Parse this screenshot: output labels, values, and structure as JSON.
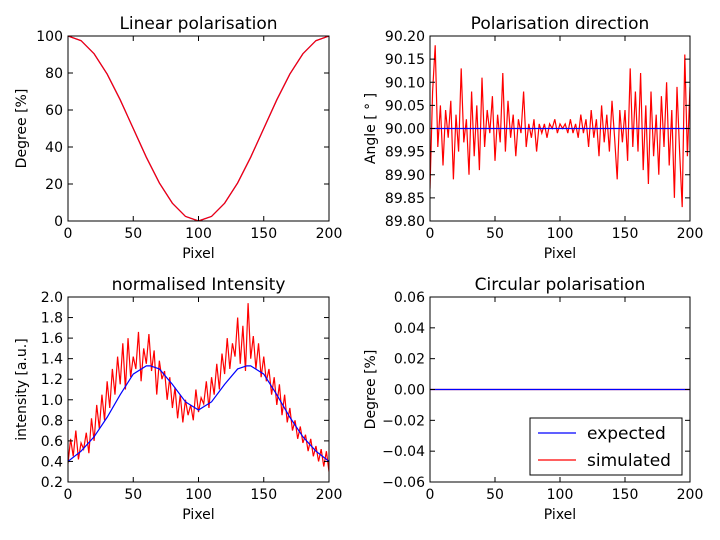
{
  "chart_data": [
    {
      "type": "line",
      "title": "Linear polarisation",
      "xlabel": "Pixel",
      "ylabel": "Degree [%]",
      "xlim": [
        0,
        200
      ],
      "ylim": [
        0,
        100
      ],
      "xticks": [
        "0",
        "50",
        "100",
        "150",
        "200"
      ],
      "yticks": [
        "0",
        "20",
        "40",
        "60",
        "80",
        "100"
      ],
      "series": [
        {
          "color": "#0000ff",
          "x": [
            0,
            10,
            20,
            30,
            40,
            50,
            60,
            70,
            80,
            90,
            100,
            110,
            120,
            130,
            140,
            150,
            160,
            170,
            180,
            190,
            200
          ],
          "y": [
            100,
            97.5,
            90.4,
            79.4,
            65.5,
            50,
            34.5,
            20.6,
            9.6,
            2.5,
            0,
            2.5,
            9.6,
            20.6,
            34.5,
            50,
            65.5,
            79.4,
            90.4,
            97.5,
            100
          ]
        },
        {
          "color": "#ff0000",
          "x": [
            0,
            10,
            20,
            30,
            40,
            50,
            60,
            70,
            80,
            90,
            100,
            110,
            120,
            130,
            140,
            150,
            160,
            170,
            180,
            190,
            200
          ],
          "y": [
            100,
            97.5,
            90.4,
            79.4,
            65.5,
            50,
            34.5,
            20.6,
            9.6,
            2.5,
            0,
            2.5,
            9.6,
            20.6,
            34.5,
            50,
            65.5,
            79.4,
            90.4,
            97.5,
            100
          ]
        }
      ]
    },
    {
      "type": "line",
      "title": "Polarisation direction",
      "xlabel": "Pixel",
      "ylabel": "Angle [ ° ]",
      "xlim": [
        0,
        200
      ],
      "ylim": [
        89.8,
        90.2
      ],
      "xticks": [
        "0",
        "50",
        "100",
        "150",
        "200"
      ],
      "yticks": [
        "89.80",
        "89.85",
        "89.90",
        "89.95",
        "90.00",
        "90.05",
        "90.10",
        "90.15",
        "90.20"
      ],
      "series": [
        {
          "color": "#0000ff",
          "x": [
            0,
            200
          ],
          "y": [
            90.0,
            90.0
          ]
        },
        {
          "color": "#ff0000",
          "x": [
            0,
            2,
            4,
            6,
            8,
            10,
            12,
            14,
            16,
            18,
            20,
            22,
            24,
            26,
            28,
            30,
            32,
            34,
            36,
            38,
            40,
            42,
            44,
            46,
            48,
            50,
            52,
            54,
            56,
            58,
            60,
            62,
            64,
            66,
            68,
            70,
            72,
            74,
            76,
            78,
            80,
            82,
            84,
            86,
            88,
            90,
            92,
            94,
            96,
            98,
            100,
            102,
            104,
            106,
            108,
            110,
            112,
            114,
            116,
            118,
            120,
            122,
            124,
            126,
            128,
            130,
            132,
            134,
            136,
            138,
            140,
            142,
            144,
            146,
            148,
            150,
            152,
            154,
            156,
            158,
            160,
            162,
            164,
            166,
            168,
            170,
            172,
            174,
            176,
            178,
            180,
            182,
            184,
            186,
            188,
            190,
            192,
            194,
            196,
            198,
            200
          ],
          "y": [
            89.87,
            90.08,
            90.18,
            89.96,
            90.05,
            89.92,
            90.04,
            89.98,
            90.06,
            89.89,
            90.03,
            89.95,
            90.13,
            89.97,
            90.02,
            89.9,
            90.08,
            89.94,
            90.05,
            89.91,
            90.11,
            89.96,
            90.04,
            89.99,
            90.07,
            89.93,
            90.03,
            89.97,
            90.12,
            89.95,
            90.06,
            89.98,
            90.03,
            89.94,
            90.02,
            89.99,
            90.08,
            89.96,
            90.01,
            89.98,
            90.02,
            89.95,
            90.01,
            89.99,
            90.01,
            89.98,
            90.01,
            90.0,
            90.02,
            89.99,
            90.01,
            90.0,
            90.01,
            89.99,
            90.02,
            89.99,
            90.01,
            89.98,
            90.03,
            89.99,
            90.02,
            89.96,
            90.04,
            89.98,
            90.02,
            89.94,
            90.05,
            89.97,
            90.03,
            89.95,
            90.06,
            89.98,
            89.89,
            90.04,
            89.97,
            90.04,
            89.93,
            90.13,
            89.96,
            90.08,
            89.95,
            90.12,
            89.91,
            90.05,
            89.88,
            90.08,
            89.94,
            90.03,
            89.9,
            90.07,
            89.96,
            90.1,
            89.92,
            90.04,
            89.85,
            90.09,
            89.95,
            89.83,
            90.16,
            89.94,
            90.09
          ]
        }
      ]
    },
    {
      "type": "line",
      "title": "normalised Intensity",
      "xlabel": "Pixel",
      "ylabel": "intensity [a.u.]",
      "xlim": [
        0,
        200
      ],
      "ylim": [
        0.2,
        2.0
      ],
      "xticks": [
        "0",
        "50",
        "100",
        "150",
        "200"
      ],
      "yticks": [
        "0.2",
        "0.4",
        "0.6",
        "0.8",
        "1.0",
        "1.2",
        "1.4",
        "1.6",
        "1.8",
        "2.0"
      ],
      "series": [
        {
          "color": "#0000ff",
          "x": [
            0,
            10,
            20,
            30,
            40,
            50,
            60,
            63,
            70,
            80,
            90,
            100,
            110,
            120,
            130,
            137,
            140,
            150,
            160,
            170,
            180,
            190,
            200
          ],
          "y": [
            0.4,
            0.5,
            0.64,
            0.83,
            1.05,
            1.25,
            1.33,
            1.33,
            1.3,
            1.15,
            0.98,
            0.9,
            0.98,
            1.15,
            1.3,
            1.33,
            1.33,
            1.25,
            1.05,
            0.83,
            0.64,
            0.5,
            0.4
          ]
        },
        {
          "color": "#ff0000",
          "x": [
            0,
            2,
            4,
            6,
            8,
            10,
            12,
            14,
            16,
            18,
            20,
            22,
            24,
            26,
            28,
            30,
            32,
            34,
            36,
            38,
            40,
            42,
            44,
            46,
            48,
            50,
            52,
            54,
            56,
            58,
            60,
            62,
            64,
            66,
            68,
            70,
            72,
            74,
            76,
            78,
            80,
            82,
            84,
            86,
            88,
            90,
            92,
            94,
            96,
            98,
            100,
            102,
            104,
            106,
            108,
            110,
            112,
            114,
            116,
            118,
            120,
            122,
            124,
            126,
            128,
            130,
            132,
            134,
            136,
            138,
            140,
            142,
            144,
            146,
            148,
            150,
            152,
            154,
            156,
            158,
            160,
            162,
            164,
            166,
            168,
            170,
            172,
            174,
            176,
            178,
            180,
            182,
            184,
            186,
            188,
            190,
            192,
            194,
            196,
            198,
            200
          ],
          "y": [
            0.38,
            0.62,
            0.45,
            0.7,
            0.42,
            0.58,
            0.52,
            0.68,
            0.48,
            0.82,
            0.6,
            0.95,
            0.72,
            1.05,
            0.8,
            1.18,
            0.92,
            1.3,
            1.05,
            1.42,
            1.15,
            1.55,
            1.1,
            1.6,
            1.22,
            1.42,
            1.3,
            1.66,
            1.18,
            1.5,
            1.35,
            1.64,
            1.28,
            1.48,
            1.05,
            1.38,
            1.2,
            1.28,
            1.0,
            1.22,
            0.92,
            1.12,
            0.82,
            1.05,
            0.78,
            1.0,
            0.85,
            0.95,
            0.8,
            1.1,
            0.88,
            1.02,
            0.96,
            1.18,
            0.92,
            1.22,
            1.05,
            1.35,
            1.1,
            1.45,
            1.25,
            1.6,
            1.3,
            1.55,
            1.42,
            1.8,
            1.35,
            1.72,
            1.28,
            1.94,
            1.4,
            1.62,
            1.3,
            1.55,
            1.22,
            1.42,
            1.18,
            1.3,
            1.05,
            1.22,
            0.95,
            1.15,
            0.85,
            1.05,
            0.78,
            0.92,
            0.7,
            0.8,
            0.62,
            0.74,
            0.58,
            0.66,
            0.5,
            0.62,
            0.45,
            0.55,
            0.4,
            0.52,
            0.35,
            0.5,
            0.3
          ]
        }
      ]
    },
    {
      "type": "line",
      "title": "Circular polarisation",
      "xlabel": "Pixel",
      "ylabel": "Degree [%]",
      "xlim": [
        0,
        200
      ],
      "ylim": [
        -0.06,
        0.06
      ],
      "xticks": [
        "0",
        "50",
        "100",
        "150",
        "200"
      ],
      "yticks": [
        "−0.06",
        "−0.04",
        "−0.02",
        "0.00",
        "0.02",
        "0.04",
        "0.06"
      ],
      "series": [
        {
          "name": "expected",
          "color": "#0000ff",
          "x": [
            0,
            200
          ],
          "y": [
            0.0,
            0.0
          ]
        },
        {
          "name": "simulated",
          "color": "#ff0000",
          "x": [
            0,
            200
          ],
          "y": [
            0.0,
            0.0
          ]
        }
      ],
      "legend": "lower-right"
    }
  ]
}
